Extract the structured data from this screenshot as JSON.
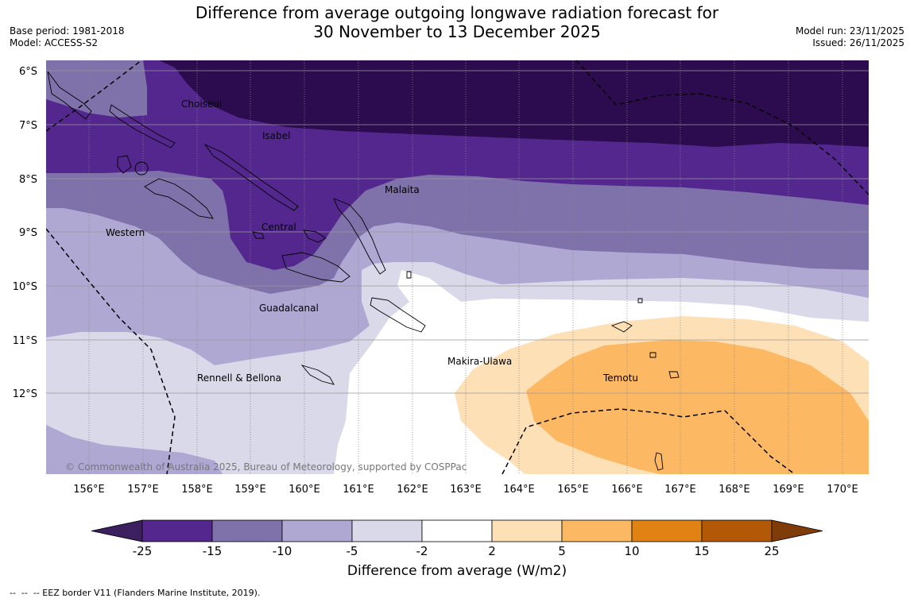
{
  "header": {
    "title_line1": "Difference from average outgoing longwave radiation forecast for",
    "title_line2": "30 November to 13 December 2025",
    "base_period": "Base period: 1981-2018",
    "model": "Model: ACCESS-S2",
    "model_run": "Model run: 23/11/2025",
    "issued": "Issued: 26/11/2025"
  },
  "map": {
    "lat_labels": [
      "6°S",
      "7°S",
      "8°S",
      "9°S",
      "10°S",
      "11°S",
      "12°S"
    ],
    "lon_labels": [
      "156°E",
      "157°E",
      "158°E",
      "159°E",
      "160°E",
      "161°E",
      "162°E",
      "163°E",
      "164°E",
      "165°E",
      "166°E",
      "167°E",
      "168°E",
      "169°E",
      "170°E"
    ],
    "provinces": [
      "Choiseul",
      "Isabel",
      "Malaita",
      "Western",
      "Central",
      "Guadalcanal",
      "Makira-Ulawa",
      "Rennell & Bellona",
      "Temotu"
    ],
    "copyright": "© Commonwealth of Australia 2025, Bureau of Meteorology, supported by COSPPac"
  },
  "colorbar": {
    "ticks": [
      "-25",
      "-15",
      "-10",
      "-5",
      "-2",
      "2",
      "5",
      "10",
      "15",
      "25"
    ],
    "colors": [
      "#3b1f5e",
      "#54278f",
      "#7f72ab",
      "#aea8d3",
      "#d9d9ea",
      "#ffffff",
      "#fee0b6",
      "#fdb863",
      "#e08214",
      "#b35806",
      "#7f3b08"
    ],
    "label": "Difference from average (W/m2)"
  },
  "footnote": "--  --  -- EEZ border V11 (Flanders Marine Institute, 2019)."
}
